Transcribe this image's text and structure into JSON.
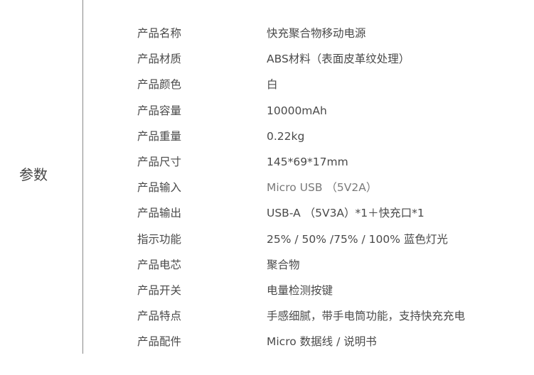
{
  "section_title": "参数",
  "specs": [
    {
      "label": "产品名称",
      "value": "快充聚合物移动电源"
    },
    {
      "label": "产品材质",
      "value": "ABS材料（表面皮革纹处理）"
    },
    {
      "label": "产品颜色",
      "value": "白"
    },
    {
      "label": "产品容量",
      "value": "10000mAh"
    },
    {
      "label": "产品重量",
      "value": "0.22kg"
    },
    {
      "label": "产品尺寸",
      "value": "145*69*17mm"
    },
    {
      "label": "产品输入",
      "value": "Micro USB （5V2A）"
    },
    {
      "label": "产品输出",
      "value": "USB-A （5V3A）*1＋快充口*1"
    },
    {
      "label": "指示功能",
      "value": "25% / 50% /75% / 100%  蓝色灯光"
    },
    {
      "label": "产品电芯",
      "value": "聚合物"
    },
    {
      "label": "产品开关",
      "value": "电量检测按键"
    },
    {
      "label": "产品特点",
      "value": "手感细腻，带手电筒功能，支持快充充电"
    },
    {
      "label": "产品配件",
      "value": "Micro 数据线 / 说明书"
    }
  ]
}
